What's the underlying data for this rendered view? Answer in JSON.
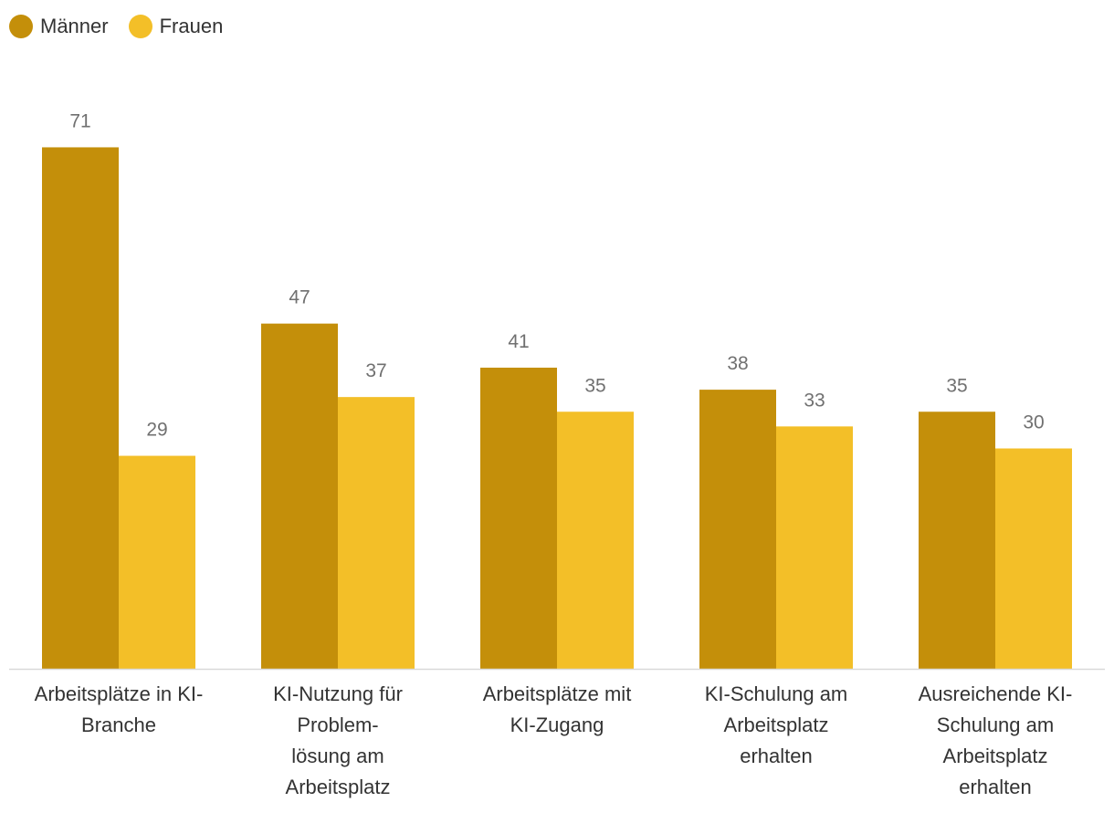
{
  "chart_data": {
    "type": "bar",
    "title": "",
    "xlabel": "",
    "ylabel": "",
    "ylim": [
      0,
      72
    ],
    "grid": false,
    "legend_position": "top-left",
    "categories": [
      [
        "Arbeitsplätze in KI-",
        "Branche"
      ],
      [
        "KI-Nutzung für",
        "Problem-",
        "lösung am",
        "Arbeitsplatz"
      ],
      [
        "Arbeitsplätze mit",
        "KI-Zugang"
      ],
      [
        "KI-Schulung am",
        "Arbeitsplatz",
        "erhalten"
      ],
      [
        "Ausreichende KI-",
        "Schulung am",
        "Arbeitsplatz",
        "erhalten"
      ]
    ],
    "series": [
      {
        "name": "Männer",
        "color": "#C48F0A",
        "values": [
          71,
          47,
          41,
          38,
          35
        ]
      },
      {
        "name": "Frauen",
        "color": "#F3BF28",
        "values": [
          29,
          37,
          35,
          33,
          30
        ]
      }
    ],
    "axis_color": "#D9D9D9"
  }
}
